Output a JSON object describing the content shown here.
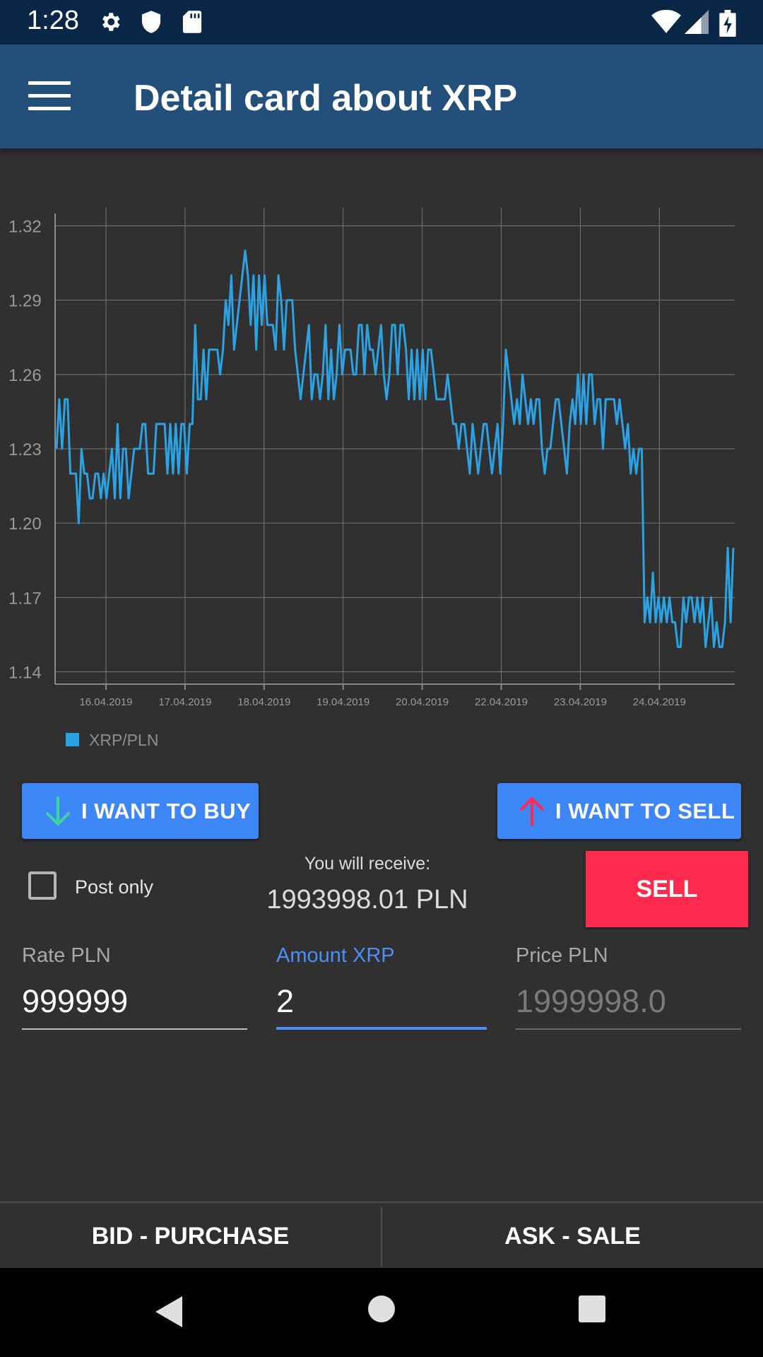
{
  "status_bar": {
    "time": "1:28",
    "icons": [
      "gear-icon",
      "shield-icon",
      "sd-card-icon",
      "wifi-icon",
      "signal-icon",
      "battery-charging-icon"
    ]
  },
  "app_bar": {
    "title": "Detail card about XRP",
    "menu_icon": "hamburger-menu-icon"
  },
  "chart_data": {
    "type": "line",
    "title": "",
    "xlabel": "",
    "ylabel": "",
    "y_ticks": [
      "1.32",
      "1.29",
      "1.26",
      "1.23",
      "1.20",
      "1.17",
      "1.14"
    ],
    "x_ticks": [
      "16.04.2019",
      "17.04.2019",
      "18.04.2019",
      "19.04.2019",
      "20.04.2019",
      "22.04.2019",
      "23.04.2019",
      "24.04.2019"
    ],
    "ylim": [
      1.135,
      1.325
    ],
    "grid": true,
    "legend_position": "bottom-left",
    "series": [
      {
        "name": "XRP/PLN",
        "color": "#2ba2e3",
        "values": [
          1.23,
          1.25,
          1.23,
          1.25,
          1.25,
          1.22,
          1.22,
          1.22,
          1.2,
          1.23,
          1.22,
          1.22,
          1.21,
          1.21,
          1.22,
          1.22,
          1.21,
          1.22,
          1.21,
          1.22,
          1.23,
          1.21,
          1.24,
          1.21,
          1.23,
          1.23,
          1.21,
          1.22,
          1.23,
          1.23,
          1.23,
          1.24,
          1.24,
          1.22,
          1.22,
          1.22,
          1.24,
          1.24,
          1.24,
          1.24,
          1.22,
          1.24,
          1.22,
          1.24,
          1.22,
          1.24,
          1.24,
          1.22,
          1.24,
          1.24,
          1.28,
          1.25,
          1.25,
          1.27,
          1.25,
          1.27,
          1.27,
          1.27,
          1.27,
          1.26,
          1.27,
          1.29,
          1.28,
          1.3,
          1.27,
          1.28,
          1.29,
          1.3,
          1.31,
          1.3,
          1.28,
          1.3,
          1.27,
          1.3,
          1.28,
          1.3,
          1.28,
          1.28,
          1.28,
          1.27,
          1.3,
          1.29,
          1.27,
          1.29,
          1.29,
          1.29,
          1.27,
          1.26,
          1.25,
          1.26,
          1.27,
          1.28,
          1.25,
          1.26,
          1.26,
          1.25,
          1.26,
          1.28,
          1.25,
          1.27,
          1.25,
          1.26,
          1.28,
          1.26,
          1.27,
          1.27,
          1.27,
          1.26,
          1.26,
          1.28,
          1.28,
          1.26,
          1.28,
          1.27,
          1.27,
          1.26,
          1.27,
          1.28,
          1.26,
          1.25,
          1.26,
          1.28,
          1.28,
          1.26,
          1.28,
          1.28,
          1.27,
          1.25,
          1.27,
          1.25,
          1.27,
          1.25,
          1.27,
          1.25,
          1.27,
          1.27,
          1.26,
          1.25,
          1.25,
          1.25,
          1.25,
          1.26,
          1.25,
          1.24,
          1.24,
          1.23,
          1.24,
          1.24,
          1.23,
          1.22,
          1.24,
          1.23,
          1.22,
          1.23,
          1.24,
          1.24,
          1.23,
          1.22,
          1.23,
          1.24,
          1.22,
          1.24,
          1.27,
          1.26,
          1.25,
          1.24,
          1.25,
          1.24,
          1.26,
          1.25,
          1.24,
          1.25,
          1.24,
          1.25,
          1.25,
          1.23,
          1.22,
          1.23,
          1.23,
          1.24,
          1.25,
          1.25,
          1.24,
          1.23,
          1.22,
          1.24,
          1.25,
          1.24,
          1.26,
          1.24,
          1.26,
          1.24,
          1.26,
          1.26,
          1.24,
          1.25,
          1.25,
          1.23,
          1.25,
          1.25,
          1.25,
          1.25,
          1.24,
          1.25,
          1.24,
          1.23,
          1.24,
          1.22,
          1.23,
          1.22,
          1.23,
          1.23,
          1.16,
          1.17,
          1.16,
          1.18,
          1.16,
          1.17,
          1.16,
          1.17,
          1.16,
          1.17,
          1.16,
          1.16,
          1.15,
          1.15,
          1.17,
          1.16,
          1.17,
          1.17,
          1.16,
          1.17,
          1.16,
          1.17,
          1.15,
          1.16,
          1.17,
          1.15,
          1.16,
          1.15,
          1.15,
          1.16,
          1.19,
          1.16,
          1.19
        ]
      }
    ]
  },
  "actions": {
    "buy_button": "I WANT TO BUY",
    "sell_button": "I WANT TO SELL",
    "buy_icon": "arrow-down-icon",
    "sell_icon": "arrow-up-icon",
    "buy_icon_color": "#3dd6a0",
    "sell_icon_color": "#ff2a4d"
  },
  "order": {
    "post_only_label": "Post only",
    "post_only_checked": false,
    "receive_label": "You will receive:",
    "receive_value": "1993998.01 PLN",
    "submit_button": "SELL",
    "submit_color": "#ff2a4d"
  },
  "fields": {
    "rate": {
      "label": "Rate PLN",
      "value": "999999"
    },
    "amount": {
      "label": "Amount XRP",
      "value": "2"
    },
    "price": {
      "label": "Price PLN",
      "value": "1999998.0"
    }
  },
  "tabs": {
    "bid": "BID - PURCHASE",
    "ask": "ASK - SALE"
  },
  "nav_bar": {
    "icons": [
      "back-icon",
      "home-icon",
      "recents-icon"
    ]
  },
  "colors": {
    "app_bar": "#23507a",
    "status_bar": "#0b2748",
    "background": "#303030",
    "accent": "#3d86f6"
  }
}
